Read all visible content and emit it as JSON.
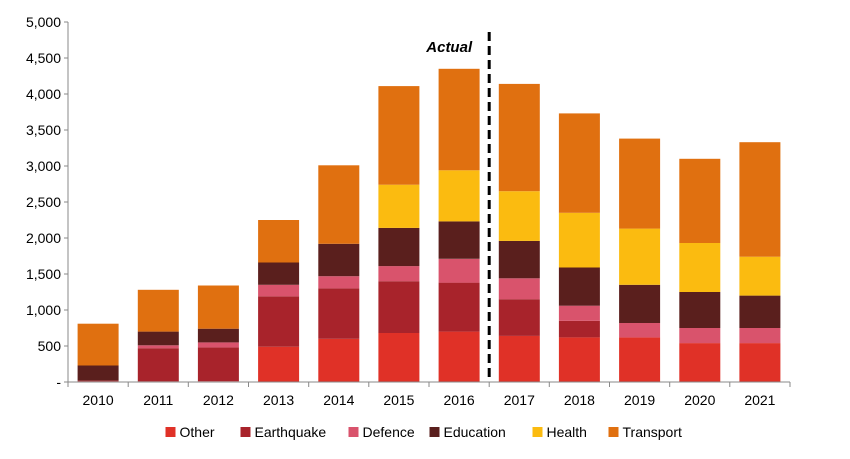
{
  "chart_data": {
    "type": "bar",
    "stacked": true,
    "categories": [
      "2010",
      "2011",
      "2012",
      "2013",
      "2014",
      "2015",
      "2016",
      "2017",
      "2018",
      "2019",
      "2020",
      "2021"
    ],
    "y_tick_labels": [
      "-",
      "500",
      "1,000",
      "1,500",
      "2,000",
      "2,500",
      "3,000",
      "3,500",
      "4,000",
      "4,500",
      "5,000"
    ],
    "ylim": [
      0,
      5000
    ],
    "grid": false,
    "legend_position": "bottom",
    "annotation": {
      "text": "Actual",
      "divider_between": [
        "2016",
        "2017"
      ],
      "line_style": "dashed"
    },
    "series": [
      {
        "name": "Other",
        "color": "#e03127",
        "values": [
          10,
          10,
          10,
          490,
          600,
          680,
          700,
          640,
          620,
          620,
          540,
          540
        ]
      },
      {
        "name": "Earthquake",
        "color": "#a8232b",
        "values": [
          10,
          460,
          470,
          700,
          700,
          720,
          680,
          510,
          230,
          0,
          0,
          0
        ]
      },
      {
        "name": "Defence",
        "color": "#d9536c",
        "values": [
          0,
          40,
          70,
          160,
          170,
          210,
          330,
          290,
          210,
          200,
          210,
          210
        ]
      },
      {
        "name": "Education",
        "color": "#5a1f1d",
        "values": [
          210,
          190,
          190,
          310,
          450,
          530,
          520,
          520,
          530,
          530,
          500,
          450
        ]
      },
      {
        "name": "Health",
        "color": "#fbbb10",
        "values": [
          0,
          0,
          0,
          0,
          0,
          600,
          710,
          690,
          760,
          780,
          680,
          540
        ]
      },
      {
        "name": "Transport",
        "color": "#e07010",
        "values": [
          580,
          580,
          600,
          590,
          1090,
          1370,
          1410,
          1490,
          1380,
          1250,
          1170,
          1590
        ]
      }
    ]
  }
}
